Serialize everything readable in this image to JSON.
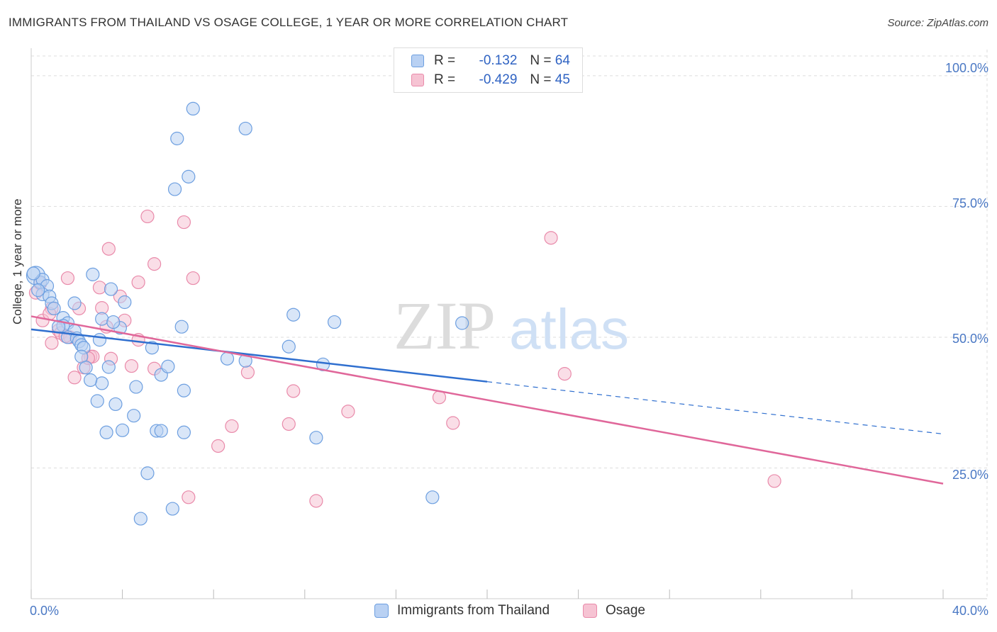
{
  "header": {
    "title": "IMMIGRANTS FROM THAILAND VS OSAGE COLLEGE, 1 YEAR OR MORE CORRELATION CHART",
    "source": "Source: ZipAtlas.com"
  },
  "watermark": {
    "zip": "ZIP",
    "atlas": "atlas"
  },
  "colors": {
    "blue_fill": "#b9d1f3",
    "blue_stroke": "#6d9fe0",
    "blue_line": "#2f6fcf",
    "pink_fill": "#f6c3d3",
    "pink_stroke": "#e98aaa",
    "pink_line": "#e0679a",
    "tick_label": "#4a78c4"
  },
  "legend": {
    "items": [
      {
        "r_label": "R =",
        "r_value": "-0.132",
        "n_label": "N =",
        "n_value": "64"
      },
      {
        "r_label": "R =",
        "r_value": "-0.429",
        "n_label": "N =",
        "n_value": "45"
      }
    ],
    "bottom": [
      "Immigrants from Thailand",
      "Osage"
    ]
  },
  "chart_data": {
    "type": "scatter",
    "title": "IMMIGRANTS FROM THAILAND VS OSAGE COLLEGE, 1 YEAR OR MORE CORRELATION CHART",
    "xlabel": "",
    "ylabel": "College, 1 year or more",
    "xlim": [
      0,
      40
    ],
    "ylim": [
      0,
      105
    ],
    "x_tick_labels": [
      "0.0%",
      "40.0%"
    ],
    "y_ticks": [
      25,
      50,
      75,
      100
    ],
    "y_tick_labels": [
      "25.0%",
      "50.0%",
      "75.0%",
      "100.0%"
    ],
    "grid": true,
    "legend_position": "top-center",
    "series": [
      {
        "name": "Immigrants from Thailand",
        "r": -0.132,
        "n": 64,
        "trend": {
          "x0": 0,
          "y0": 51.5,
          "x1": 20,
          "y1": 41.5,
          "dashed_to_x": 40,
          "dashed_to_y": 31.5
        },
        "points": [
          [
            0.2,
            61.8
          ],
          [
            0.4,
            60.5
          ],
          [
            0.5,
            61
          ],
          [
            0.7,
            59.8
          ],
          [
            0.5,
            58.2
          ],
          [
            0.8,
            57.8
          ],
          [
            0.9,
            56.5
          ],
          [
            1.0,
            55.5
          ],
          [
            1.4,
            53.7
          ],
          [
            1.6,
            52.7
          ],
          [
            1.4,
            52.2
          ],
          [
            1.9,
            51.2
          ],
          [
            1.6,
            50.0
          ],
          [
            2.0,
            49.8
          ],
          [
            2.1,
            49.2
          ],
          [
            2.2,
            48.5
          ],
          [
            2.3,
            48.0
          ],
          [
            2.2,
            46.3
          ],
          [
            2.4,
            44.2
          ],
          [
            1.9,
            56.5
          ],
          [
            2.7,
            62.0
          ],
          [
            3.1,
            53.5
          ],
          [
            3.0,
            49.5
          ],
          [
            3.5,
            59.2
          ],
          [
            3.9,
            51.8
          ],
          [
            4.1,
            56.7
          ],
          [
            3.6,
            52.9
          ],
          [
            3.4,
            44.3
          ],
          [
            3.1,
            41.2
          ],
          [
            2.6,
            41.8
          ],
          [
            2.9,
            37.8
          ],
          [
            3.7,
            37.2
          ],
          [
            3.3,
            31.8
          ],
          [
            4.0,
            32.2
          ],
          [
            4.5,
            35.0
          ],
          [
            4.6,
            40.5
          ],
          [
            5.3,
            48.0
          ],
          [
            5.7,
            42.8
          ],
          [
            6.0,
            44.4
          ],
          [
            5.5,
            32.1
          ],
          [
            5.7,
            32.1
          ],
          [
            6.7,
            39.8
          ],
          [
            6.7,
            31.8
          ],
          [
            5.1,
            24.0
          ],
          [
            4.8,
            15.3
          ],
          [
            6.2,
            17.2
          ],
          [
            6.3,
            78.3
          ],
          [
            6.9,
            80.7
          ],
          [
            6.4,
            88.0
          ],
          [
            7.1,
            93.7
          ],
          [
            9.4,
            89.9
          ],
          [
            6.6,
            52.0
          ],
          [
            8.6,
            45.9
          ],
          [
            9.4,
            45.5
          ],
          [
            11.5,
            54.3
          ],
          [
            13.3,
            52.9
          ],
          [
            11.3,
            48.2
          ],
          [
            12.8,
            44.8
          ],
          [
            12.5,
            30.8
          ],
          [
            18.9,
            52.7
          ],
          [
            17.6,
            19.4
          ],
          [
            0.1,
            62.2
          ],
          [
            0.3,
            59.0
          ],
          [
            1.2,
            52.0
          ]
        ]
      },
      {
        "name": "Osage",
        "r": -0.429,
        "n": 45,
        "trend": {
          "x0": 0,
          "y0": 54,
          "x1": 40,
          "y1": 22
        },
        "points": [
          [
            0.2,
            58.5
          ],
          [
            0.4,
            60.3
          ],
          [
            0.5,
            53.2
          ],
          [
            0.9,
            55.5
          ],
          [
            0.9,
            48.9
          ],
          [
            1.2,
            51.3
          ],
          [
            1.3,
            50.8
          ],
          [
            1.6,
            61.3
          ],
          [
            1.7,
            50.0
          ],
          [
            2.1,
            55.5
          ],
          [
            1.9,
            42.3
          ],
          [
            2.3,
            44.2
          ],
          [
            2.6,
            46.3
          ],
          [
            2.7,
            46.3
          ],
          [
            3.0,
            59.5
          ],
          [
            3.1,
            55.6
          ],
          [
            3.3,
            52.0
          ],
          [
            3.4,
            66.9
          ],
          [
            3.5,
            45.9
          ],
          [
            3.9,
            57.8
          ],
          [
            4.1,
            53.2
          ],
          [
            4.4,
            44.5
          ],
          [
            4.7,
            60.5
          ],
          [
            4.7,
            49.5
          ],
          [
            5.1,
            73.1
          ],
          [
            5.4,
            44.0
          ],
          [
            5.4,
            64.0
          ],
          [
            6.7,
            72.0
          ],
          [
            7.1,
            61.3
          ],
          [
            8.2,
            29.2
          ],
          [
            8.8,
            33.0
          ],
          [
            9.5,
            43.3
          ],
          [
            6.9,
            19.4
          ],
          [
            11.5,
            39.7
          ],
          [
            11.3,
            33.4
          ],
          [
            12.5,
            18.7
          ],
          [
            13.9,
            35.8
          ],
          [
            17.9,
            38.5
          ],
          [
            18.5,
            33.6
          ],
          [
            22.8,
            69.0
          ],
          [
            23.4,
            43.0
          ],
          [
            32.6,
            22.5
          ],
          [
            0.8,
            54.5
          ],
          [
            1.5,
            50.2
          ],
          [
            2.5,
            46.0
          ]
        ]
      }
    ]
  }
}
